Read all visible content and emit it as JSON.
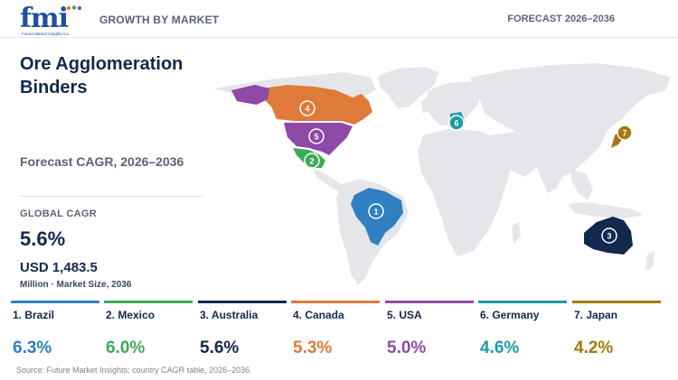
{
  "header": {
    "logo_text": "fmi",
    "logo_tagline": "Future Market Insights Inc.",
    "section": "GROWTH BY MARKET",
    "forecast": "FORECAST 2026–2036"
  },
  "title": "Ore Agglomeration Binders",
  "subtitle": "Forecast CAGR, 2026–2036",
  "kpi": {
    "label": "GLOBAL CAGR",
    "value": "5.6%",
    "market_size": "USD 1,483.5",
    "note": "Million · Market Size, 2036"
  },
  "source": "Source: Future Market Insights; country CAGR table, 2026–2036.",
  "colors": {
    "brazil": "#2f7fc1",
    "mexico": "#3faa5a",
    "australia": "#12284d",
    "canada": "#e07a3a",
    "usa": "#8e4aa6",
    "germany": "#1e9aa8",
    "japan": "#a5790f",
    "land": "#e4e6ea"
  },
  "chart_data": {
    "type": "table",
    "title": "Ore Agglomeration Binders",
    "subtitle": "Forecast CAGR, 2026–2036",
    "categories": [
      "Brazil",
      "Mexico",
      "Australia",
      "Canada",
      "USA",
      "Germany",
      "Japan"
    ],
    "ranks": [
      1,
      2,
      3,
      4,
      5,
      6,
      7
    ],
    "labels": [
      "1. Brazil",
      "2. Mexico",
      "3. Australia",
      "4. Canada",
      "5. USA",
      "6. Germany",
      "7. Japan"
    ],
    "values": [
      6.3,
      6.0,
      5.6,
      5.3,
      5.0,
      4.6,
      4.2
    ],
    "value_labels": [
      "6.3%",
      "6.0%",
      "5.6%",
      "5.3%",
      "5.0%",
      "4.6%",
      "4.2%"
    ],
    "unit": "%",
    "map_markers": [
      "1",
      "2",
      "3",
      "4",
      "5",
      "6",
      "7"
    ]
  }
}
